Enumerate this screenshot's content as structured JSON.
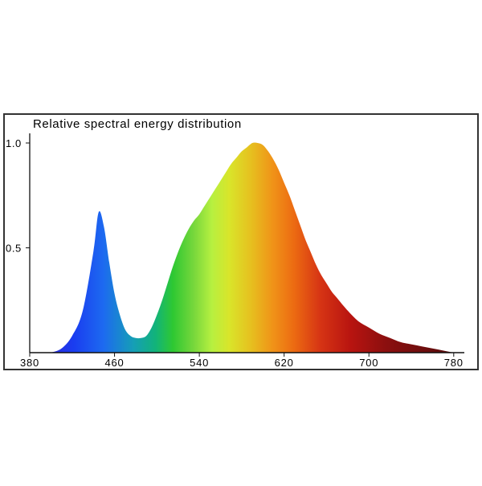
{
  "chart_data": {
    "type": "area",
    "title": "Relative spectral energy distribution",
    "xlabel": "",
    "ylabel": "",
    "xlim": [
      380,
      790
    ],
    "ylim": [
      0,
      1.0
    ],
    "x_ticks": [
      380,
      460,
      540,
      620,
      700,
      780
    ],
    "y_ticks": [
      0.5,
      1.0
    ],
    "y_tick_labels": [
      "0.5",
      "1.0"
    ],
    "grid": false,
    "legend": "none",
    "fill": "visible-spectrum color gradient (violet-blue to deep red)",
    "series": [
      {
        "x": [
          400,
          410,
          420,
          430,
          440,
          445,
          450,
          455,
          460,
          465,
          470,
          475,
          480,
          485,
          490,
          495,
          500,
          505,
          510,
          515,
          520,
          525,
          530,
          535,
          540,
          545,
          550,
          555,
          560,
          565,
          570,
          575,
          580,
          585,
          590,
          595,
          600,
          605,
          610,
          615,
          620,
          625,
          630,
          635,
          640,
          645,
          650,
          655,
          660,
          665,
          670,
          680,
          690,
          700,
          710,
          720,
          730,
          740,
          750,
          760,
          770,
          780
        ],
        "values": [
          0.0,
          0.02,
          0.08,
          0.2,
          0.48,
          0.67,
          0.6,
          0.43,
          0.28,
          0.18,
          0.11,
          0.08,
          0.07,
          0.07,
          0.08,
          0.12,
          0.18,
          0.25,
          0.33,
          0.41,
          0.48,
          0.54,
          0.59,
          0.63,
          0.66,
          0.7,
          0.74,
          0.78,
          0.82,
          0.86,
          0.9,
          0.93,
          0.96,
          0.98,
          1.0,
          1.0,
          0.99,
          0.96,
          0.92,
          0.87,
          0.81,
          0.75,
          0.68,
          0.61,
          0.54,
          0.48,
          0.42,
          0.37,
          0.33,
          0.29,
          0.26,
          0.2,
          0.15,
          0.12,
          0.09,
          0.07,
          0.05,
          0.04,
          0.03,
          0.02,
          0.01,
          0.0
        ]
      }
    ]
  },
  "colors": {
    "frame": "#333333",
    "axis": "#111111",
    "text": "#000000"
  }
}
